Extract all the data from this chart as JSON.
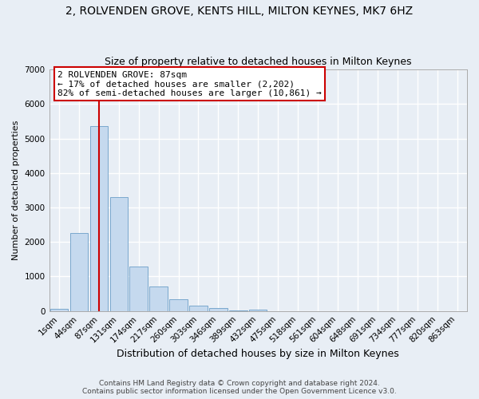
{
  "title1": "2, ROLVENDEN GROVE, KENTS HILL, MILTON KEYNES, MK7 6HZ",
  "title2": "Size of property relative to detached houses in Milton Keynes",
  "xlabel": "Distribution of detached houses by size in Milton Keynes",
  "ylabel": "Number of detached properties",
  "categories": [
    "1sqm",
    "44sqm",
    "87sqm",
    "131sqm",
    "174sqm",
    "217sqm",
    "260sqm",
    "303sqm",
    "346sqm",
    "389sqm",
    "432sqm",
    "475sqm",
    "518sqm",
    "561sqm",
    "604sqm",
    "648sqm",
    "691sqm",
    "734sqm",
    "777sqm",
    "820sqm",
    "863sqm"
  ],
  "values": [
    55,
    2250,
    5350,
    3300,
    1300,
    700,
    350,
    150,
    80,
    20,
    30,
    0,
    0,
    0,
    0,
    0,
    0,
    0,
    0,
    0,
    0
  ],
  "bar_color": "#c5d9ee",
  "bar_edgecolor": "#6b9ec8",
  "vline_x_index": 2,
  "vline_color": "#cc0000",
  "annotation_title": "2 ROLVENDEN GROVE: 87sqm",
  "annotation_line1": "← 17% of detached houses are smaller (2,202)",
  "annotation_line2": "82% of semi-detached houses are larger (10,861) →",
  "annotation_box_facecolor": "#ffffff",
  "annotation_box_edgecolor": "#cc0000",
  "ylim": [
    0,
    7000
  ],
  "yticks": [
    0,
    1000,
    2000,
    3000,
    4000,
    5000,
    6000,
    7000
  ],
  "footer1": "Contains HM Land Registry data © Crown copyright and database right 2024.",
  "footer2": "Contains public sector information licensed under the Open Government Licence v3.0.",
  "bg_color": "#e8eef5",
  "plot_bg_color": "#e8eef5",
  "grid_color": "#ffffff",
  "title1_fontsize": 10,
  "title2_fontsize": 9,
  "xlabel_fontsize": 9,
  "ylabel_fontsize": 8,
  "tick_fontsize": 7.5,
  "annotation_fontsize": 8,
  "footer_fontsize": 6.5
}
